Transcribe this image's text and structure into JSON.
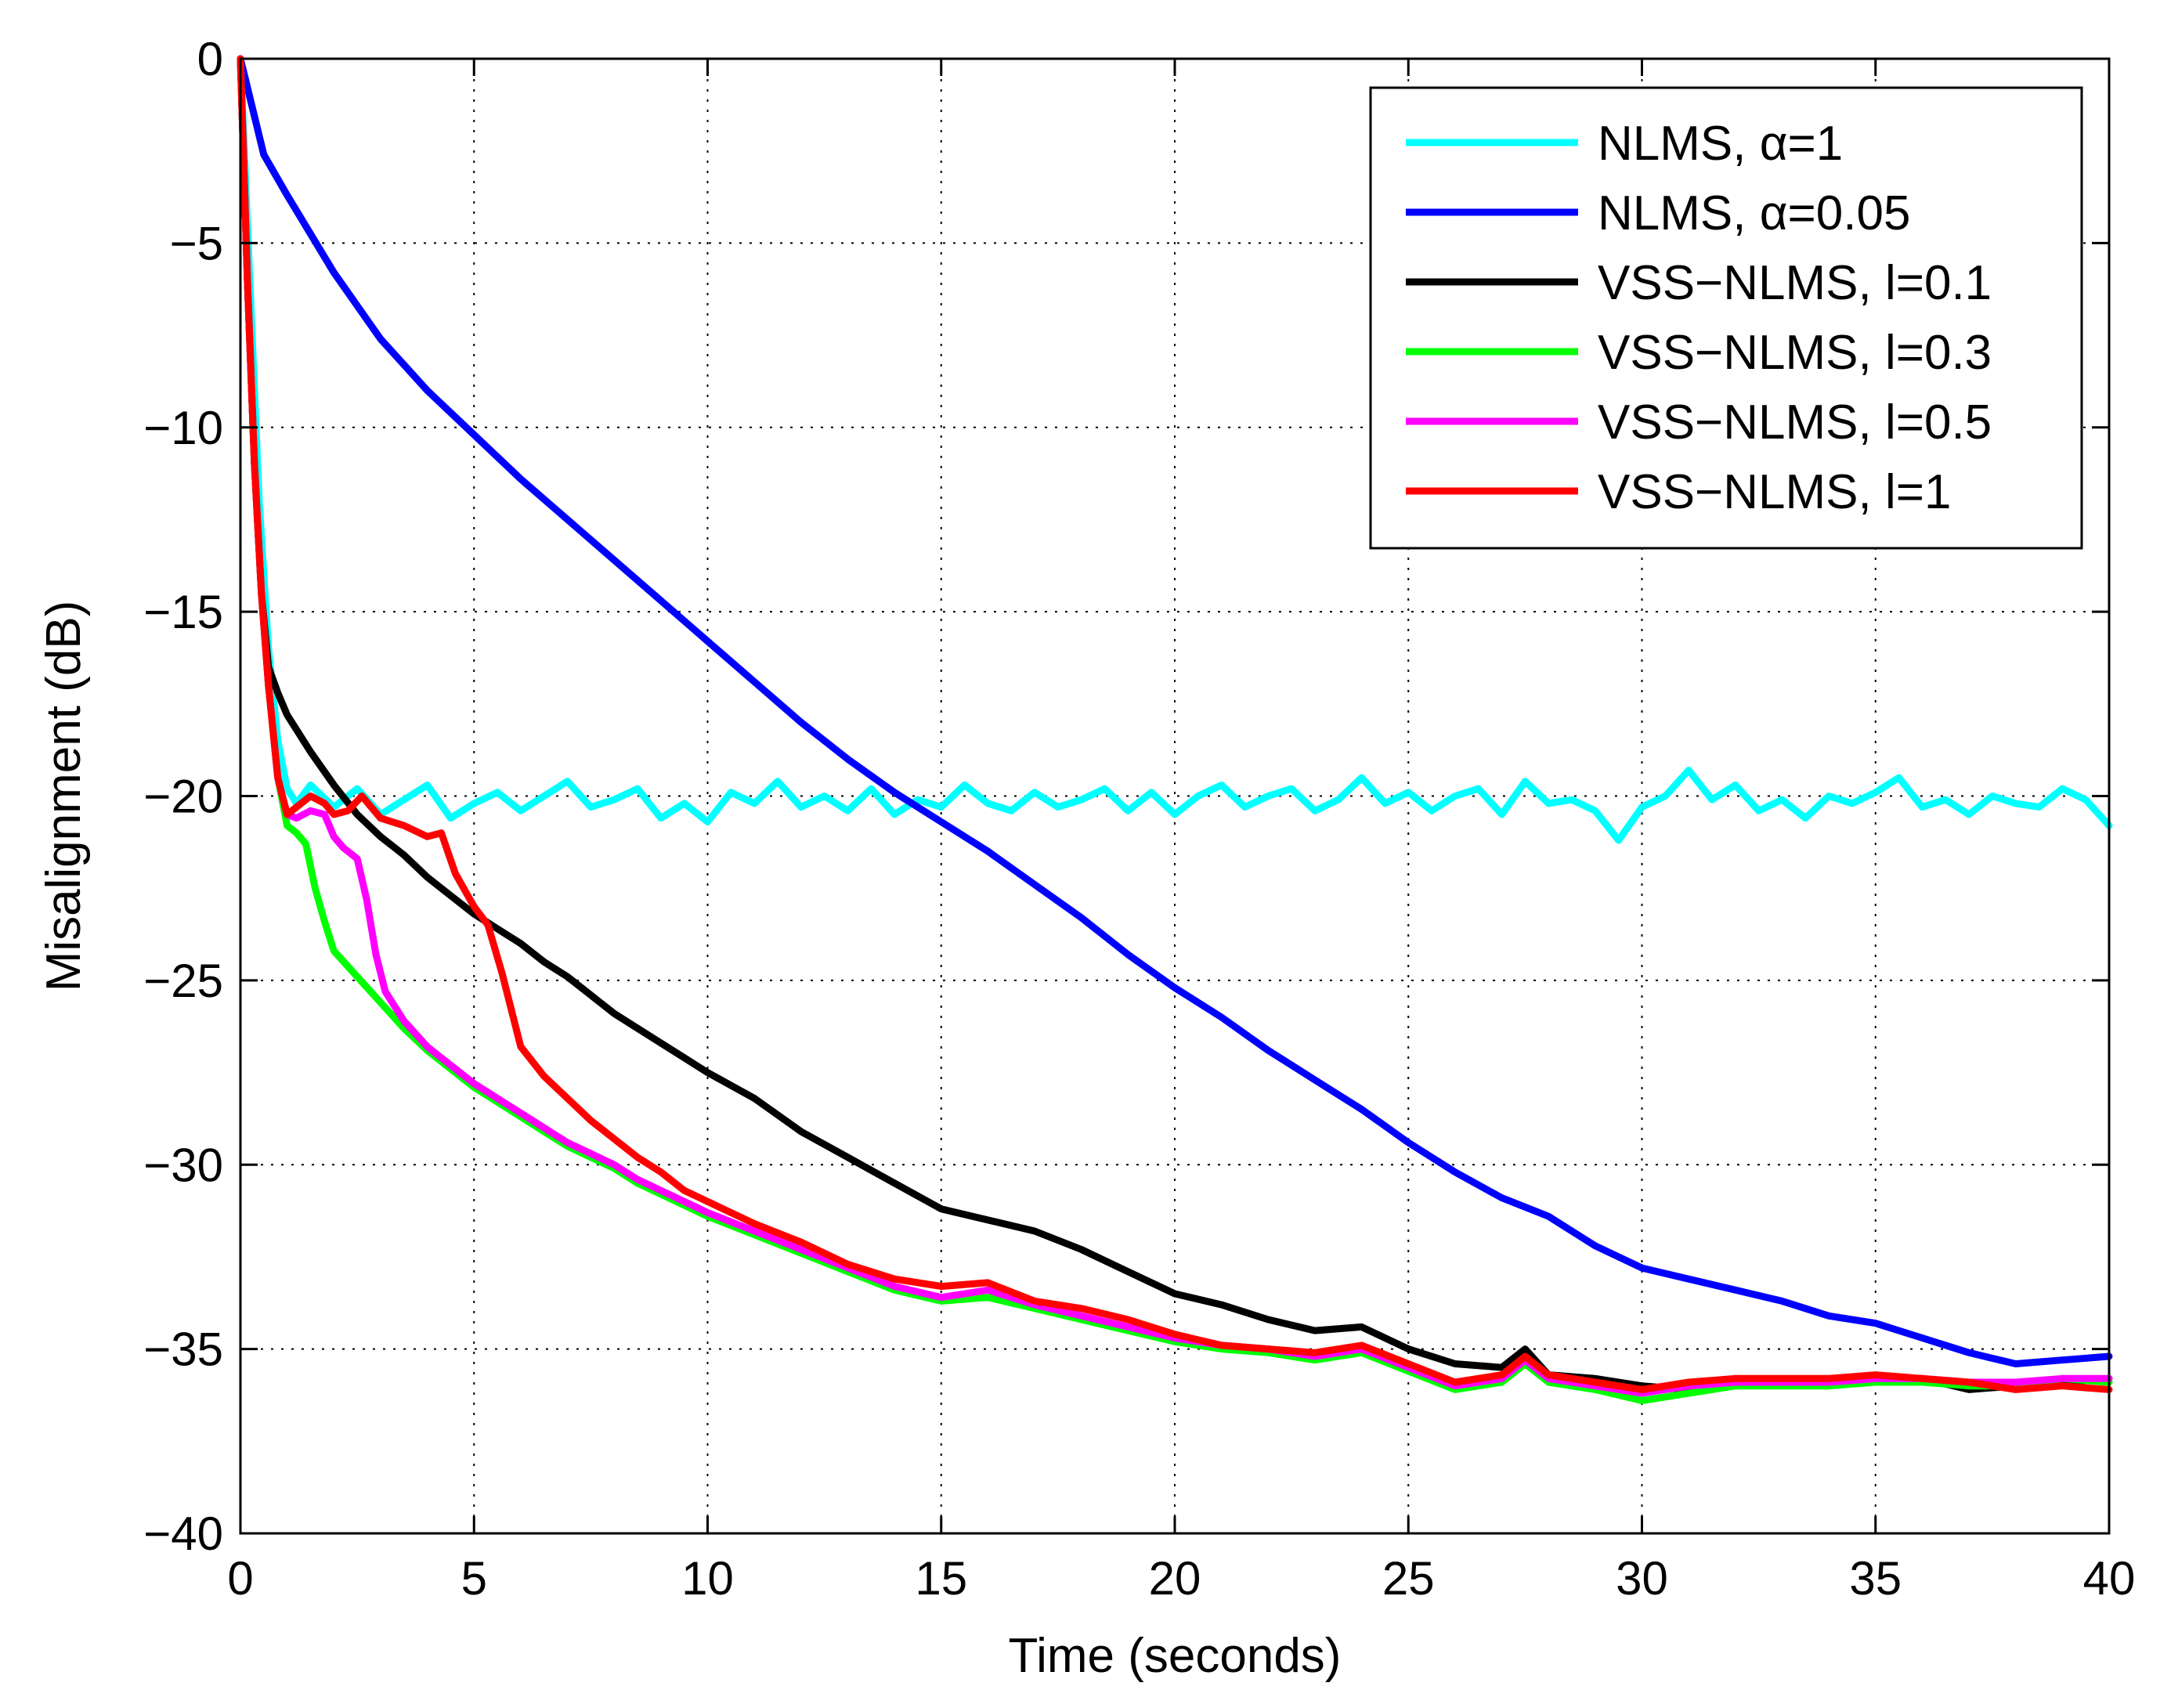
{
  "chart_data": {
    "type": "line",
    "title": "",
    "xlabel": "Time (seconds)",
    "ylabel": "Misalignment (dB)",
    "xlim": [
      0,
      40
    ],
    "ylim": [
      -40,
      0
    ],
    "xticks": [
      0,
      5,
      10,
      15,
      20,
      25,
      30,
      35,
      40
    ],
    "xtick_labels": [
      "0",
      "5",
      "10",
      "15",
      "20",
      "25",
      "30",
      "35",
      "40"
    ],
    "yticks": [
      0,
      -5,
      -10,
      -15,
      -20,
      -25,
      -30,
      -35,
      -40
    ],
    "ytick_labels": [
      "0",
      "−5",
      "−10",
      "−15",
      "−20",
      "−25",
      "−30",
      "−35",
      "−40"
    ],
    "grid": true,
    "legend_position": "top-right",
    "series": [
      {
        "name": "NLMS, α=1",
        "color": "#00ffff",
        "x": [
          0,
          0.2,
          0.4,
          0.6,
          0.8,
          1.0,
          1.2,
          1.5,
          2,
          2.5,
          3,
          3.5,
          4,
          4.5,
          5,
          5.5,
          6,
          6.5,
          7,
          7.5,
          8,
          8.5,
          9,
          9.5,
          10,
          10.5,
          11,
          11.5,
          12,
          12.5,
          13,
          13.5,
          14,
          14.5,
          15,
          15.5,
          16,
          16.5,
          17,
          17.5,
          18,
          18.5,
          19,
          19.5,
          20,
          20.5,
          21,
          21.5,
          22,
          22.5,
          23,
          23.5,
          24,
          24.5,
          25,
          25.5,
          26,
          26.5,
          27,
          27.5,
          28,
          28.5,
          29,
          29.5,
          30,
          30.5,
          31,
          31.5,
          32,
          32.5,
          33,
          33.5,
          34,
          34.5,
          35,
          35.5,
          36,
          36.5,
          37,
          37.5,
          38,
          38.5,
          39,
          39.5,
          40
        ],
        "y": [
          0,
          -6,
          -12,
          -16,
          -18.5,
          -19.8,
          -20.2,
          -19.7,
          -20.3,
          -19.8,
          -20.5,
          -20.1,
          -19.7,
          -20.6,
          -20.2,
          -19.9,
          -20.4,
          -20.0,
          -19.6,
          -20.3,
          -20.1,
          -19.8,
          -20.6,
          -20.2,
          -20.7,
          -19.9,
          -20.2,
          -19.6,
          -20.3,
          -20.0,
          -20.4,
          -19.8,
          -20.5,
          -20.1,
          -20.3,
          -19.7,
          -20.2,
          -20.4,
          -19.9,
          -20.3,
          -20.1,
          -19.8,
          -20.4,
          -19.9,
          -20.5,
          -20.0,
          -19.7,
          -20.3,
          -20.0,
          -19.8,
          -20.4,
          -20.1,
          -19.5,
          -20.2,
          -19.9,
          -20.4,
          -20.0,
          -19.8,
          -20.5,
          -19.6,
          -20.2,
          -20.1,
          -20.4,
          -21.2,
          -20.3,
          -20.0,
          -19.3,
          -20.1,
          -19.7,
          -20.4,
          -20.1,
          -20.6,
          -20.0,
          -20.2,
          -19.9,
          -19.5,
          -20.3,
          -20.1,
          -20.5,
          -20.0,
          -20.2,
          -20.3,
          -19.8,
          -20.1,
          -20.8
        ]
      },
      {
        "name": "NLMS, α=0.05",
        "color": "#0000ff",
        "x": [
          0,
          0.5,
          1,
          2,
          3,
          4,
          5,
          6,
          7,
          8,
          9,
          10,
          11,
          12,
          13,
          14,
          15,
          16,
          17,
          18,
          19,
          20,
          21,
          22,
          23,
          24,
          25,
          26,
          27,
          28,
          29,
          30,
          31,
          32,
          33,
          34,
          35,
          36,
          37,
          38,
          39,
          40
        ],
        "y": [
          0,
          -2.6,
          -3.7,
          -5.8,
          -7.6,
          -9.0,
          -10.2,
          -11.4,
          -12.5,
          -13.6,
          -14.7,
          -15.8,
          -16.9,
          -18.0,
          -19.0,
          -19.9,
          -20.7,
          -21.5,
          -22.4,
          -23.3,
          -24.3,
          -25.2,
          -26.0,
          -26.9,
          -27.7,
          -28.5,
          -29.4,
          -30.2,
          -30.9,
          -31.4,
          -32.2,
          -32.8,
          -33.1,
          -33.4,
          -33.7,
          -34.1,
          -34.3,
          -34.7,
          -35.1,
          -35.4,
          -35.3,
          -35.2
        ]
      },
      {
        "name": "VSS−NLMS, l=0.1",
        "color": "#000000",
        "x": [
          0,
          0.15,
          0.3,
          0.45,
          0.6,
          0.8,
          1,
          1.5,
          2,
          2.5,
          3,
          3.5,
          4,
          4.5,
          5,
          5.5,
          6,
          6.5,
          7,
          7.5,
          8,
          8.5,
          9,
          9.5,
          10,
          11,
          12,
          13,
          14,
          15,
          16,
          17,
          18,
          19,
          20,
          21,
          22,
          23,
          24,
          25,
          26,
          27,
          27.5,
          28,
          29,
          30,
          31,
          32,
          33,
          34,
          35,
          36,
          37,
          38,
          39,
          40
        ],
        "y": [
          0,
          -6,
          -11,
          -14.5,
          -16.5,
          -17.2,
          -17.8,
          -18.8,
          -19.7,
          -20.5,
          -21.1,
          -21.6,
          -22.2,
          -22.7,
          -23.2,
          -23.6,
          -24.0,
          -24.5,
          -24.9,
          -25.4,
          -25.9,
          -26.3,
          -26.7,
          -27.1,
          -27.5,
          -28.2,
          -29.1,
          -29.8,
          -30.5,
          -31.2,
          -31.5,
          -31.8,
          -32.3,
          -32.9,
          -33.5,
          -33.8,
          -34.2,
          -34.5,
          -34.4,
          -35.0,
          -35.4,
          -35.5,
          -35.0,
          -35.7,
          -35.8,
          -36.0,
          -36.1,
          -35.8,
          -35.9,
          -35.9,
          -35.8,
          -35.8,
          -36.1,
          -36.0,
          -35.9,
          -35.8
        ]
      },
      {
        "name": "VSS−NLMS, l=0.3",
        "color": "#00ff00",
        "x": [
          0,
          0.15,
          0.3,
          0.45,
          0.6,
          0.8,
          1,
          1.2,
          1.4,
          1.6,
          1.8,
          2,
          2.5,
          3,
          3.5,
          4,
          4.5,
          5,
          5.5,
          6,
          6.5,
          7,
          7.5,
          8,
          8.5,
          9,
          9.5,
          10,
          11,
          12,
          13,
          14,
          15,
          16,
          17,
          18,
          19,
          20,
          21,
          22,
          23,
          24,
          25,
          26,
          27,
          27.5,
          28,
          29,
          30,
          31,
          32,
          33,
          34,
          35,
          36,
          37,
          38,
          39,
          40
        ],
        "y": [
          0,
          -6,
          -11,
          -14.5,
          -17,
          -19.5,
          -20.8,
          -21.0,
          -21.3,
          -22.5,
          -23.4,
          -24.2,
          -24.9,
          -25.6,
          -26.3,
          -26.9,
          -27.4,
          -27.9,
          -28.3,
          -28.7,
          -29.1,
          -29.5,
          -29.8,
          -30.1,
          -30.5,
          -30.8,
          -31.1,
          -31.4,
          -31.9,
          -32.4,
          -32.9,
          -33.4,
          -33.7,
          -33.6,
          -33.9,
          -34.2,
          -34.5,
          -34.8,
          -35.0,
          -35.1,
          -35.3,
          -35.1,
          -35.6,
          -36.1,
          -35.9,
          -35.4,
          -35.9,
          -36.1,
          -36.4,
          -36.2,
          -36.0,
          -36.0,
          -36.0,
          -35.9,
          -35.9,
          -36.0,
          -36.0,
          -35.8,
          -35.9
        ]
      },
      {
        "name": "VSS−NLMS, l=0.5",
        "color": "#ff00ff",
        "x": [
          0,
          0.15,
          0.3,
          0.45,
          0.6,
          0.8,
          1,
          1.2,
          1.5,
          1.8,
          2,
          2.2,
          2.5,
          2.7,
          2.9,
          3.1,
          3.5,
          4,
          4.5,
          5,
          5.5,
          6,
          6.5,
          7,
          7.5,
          8,
          8.5,
          9,
          9.5,
          10,
          11,
          12,
          13,
          14,
          15,
          16,
          17,
          18,
          19,
          20,
          21,
          22,
          23,
          24,
          25,
          26,
          27,
          27.5,
          28,
          29,
          30,
          31,
          32,
          33,
          34,
          35,
          36,
          37,
          38,
          39,
          40
        ],
        "y": [
          0,
          -6,
          -11,
          -14.5,
          -17,
          -19.5,
          -20.5,
          -20.6,
          -20.4,
          -20.5,
          -21.1,
          -21.4,
          -21.7,
          -22.8,
          -24.3,
          -25.3,
          -26.1,
          -26.8,
          -27.3,
          -27.8,
          -28.2,
          -28.6,
          -29.0,
          -29.4,
          -29.7,
          -30.0,
          -30.4,
          -30.7,
          -31.0,
          -31.3,
          -31.8,
          -32.3,
          -32.8,
          -33.3,
          -33.6,
          -33.4,
          -33.8,
          -34.1,
          -34.4,
          -34.7,
          -34.9,
          -35.0,
          -35.2,
          -35.0,
          -35.5,
          -36.0,
          -35.8,
          -35.3,
          -35.8,
          -36.0,
          -36.2,
          -36.0,
          -35.9,
          -35.9,
          -35.9,
          -35.8,
          -35.8,
          -35.9,
          -35.9,
          -35.8,
          -35.8
        ]
      },
      {
        "name": "VSS−NLMS, l=1",
        "color": "#ff0000",
        "x": [
          0,
          0.15,
          0.3,
          0.45,
          0.6,
          0.8,
          1,
          1.2,
          1.5,
          1.8,
          2,
          2.3,
          2.6,
          3,
          3.5,
          4,
          4.3,
          4.6,
          5,
          5.3,
          5.6,
          6,
          6.5,
          7,
          7.5,
          8,
          8.5,
          9,
          9.5,
          10,
          11,
          12,
          13,
          14,
          15,
          16,
          17,
          18,
          19,
          20,
          21,
          22,
          23,
          24,
          25,
          26,
          27,
          27.5,
          28,
          29,
          30,
          31,
          32,
          33,
          34,
          35,
          36,
          37,
          38,
          39,
          40
        ],
        "y": [
          0,
          -6,
          -11,
          -14.5,
          -17,
          -19.5,
          -20.5,
          -20.3,
          -20.0,
          -20.2,
          -20.5,
          -20.4,
          -20.0,
          -20.6,
          -20.8,
          -21.1,
          -21.0,
          -22.1,
          -23.0,
          -23.5,
          -24.8,
          -26.8,
          -27.6,
          -28.2,
          -28.8,
          -29.3,
          -29.8,
          -30.2,
          -30.7,
          -31.0,
          -31.6,
          -32.1,
          -32.7,
          -33.1,
          -33.3,
          -33.2,
          -33.7,
          -33.9,
          -34.2,
          -34.6,
          -34.9,
          -35.0,
          -35.1,
          -34.9,
          -35.4,
          -35.9,
          -35.7,
          -35.2,
          -35.7,
          -35.9,
          -36.1,
          -35.9,
          -35.8,
          -35.8,
          -35.8,
          -35.7,
          -35.8,
          -35.9,
          -36.1,
          -36.0,
          -36.1
        ]
      }
    ]
  }
}
